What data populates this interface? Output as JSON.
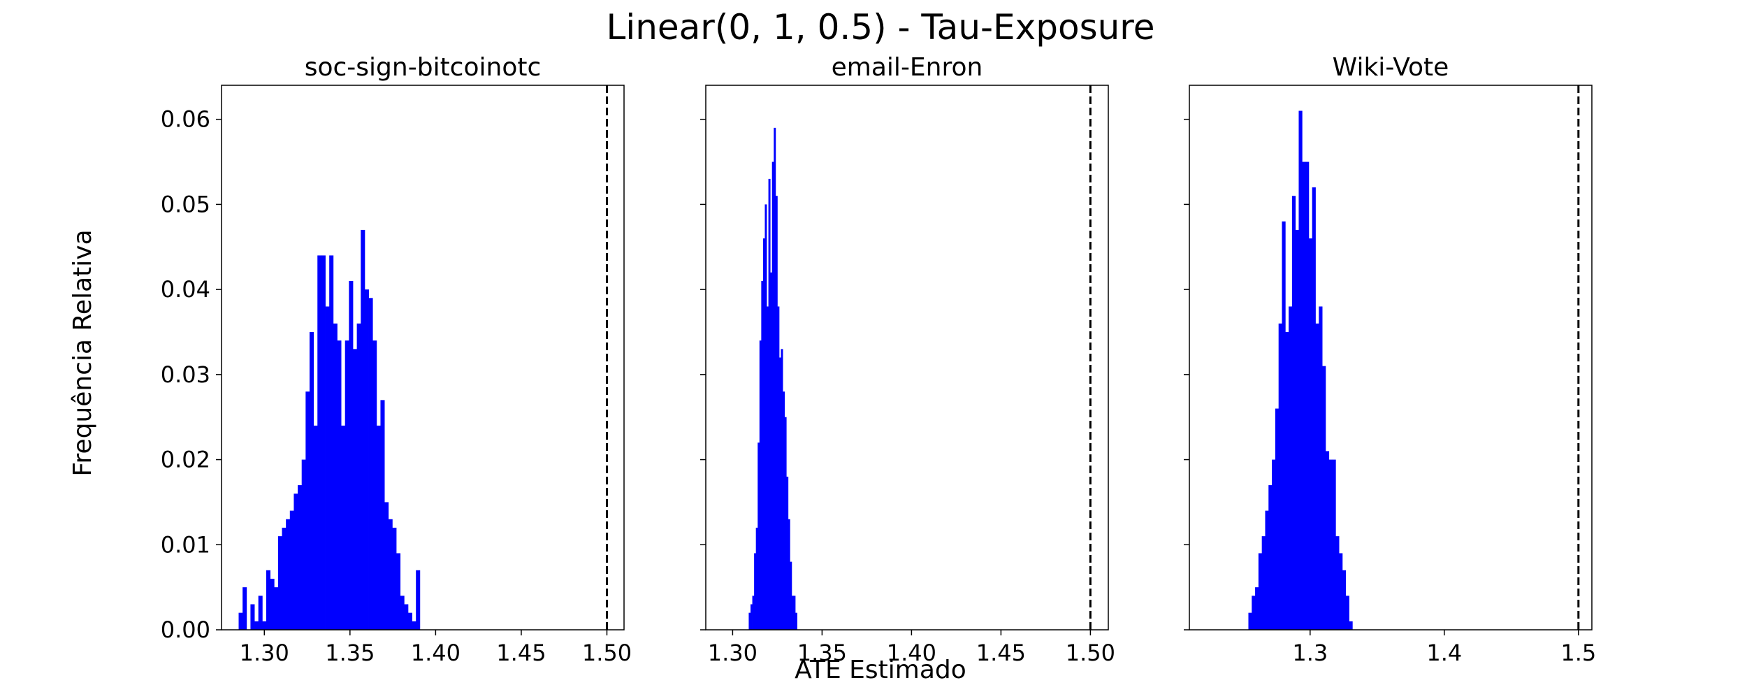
{
  "suptitle": "Linear(0, 1, 0.5) - Tau-Exposure",
  "shared_xlabel": "ATE Estimado",
  "shared_ylabel": "Frequência Relativa",
  "colors": {
    "bar": "#0000ff",
    "reference_line": "#000000"
  },
  "chart_data": [
    {
      "type": "bar",
      "title": "soc-sign-bitcoinotc",
      "xlim": [
        1.275,
        1.51
      ],
      "ylim": [
        0,
        0.064
      ],
      "x_ticks": [
        1.3,
        1.35,
        1.4,
        1.45,
        1.5
      ],
      "x_tick_labels": [
        "1.30",
        "1.35",
        "1.40",
        "1.45",
        "1.50"
      ],
      "y_ticks": [
        0,
        0.01,
        0.02,
        0.03,
        0.04,
        0.05,
        0.06
      ],
      "y_tick_labels": [
        "0.00",
        "0.01",
        "0.02",
        "0.03",
        "0.04",
        "0.05",
        "0.06"
      ],
      "reference_line_x": 1.5,
      "bin_start": 1.285,
      "bin_width": 0.0023,
      "values": [
        0.002,
        0.005,
        0.0,
        0.003,
        0.001,
        0.004,
        0.001,
        0.007,
        0.006,
        0.005,
        0.011,
        0.012,
        0.013,
        0.014,
        0.016,
        0.017,
        0.02,
        0.028,
        0.035,
        0.024,
        0.044,
        0.044,
        0.038,
        0.044,
        0.036,
        0.034,
        0.024,
        0.034,
        0.041,
        0.033,
        0.036,
        0.047,
        0.04,
        0.039,
        0.034,
        0.024,
        0.027,
        0.015,
        0.013,
        0.012,
        0.009,
        0.004,
        0.003,
        0.002,
        0.001,
        0.007
      ]
    },
    {
      "type": "bar",
      "title": "email-Enron",
      "xlim": [
        1.285,
        1.51
      ],
      "ylim": [
        0,
        0.064
      ],
      "x_ticks": [
        1.3,
        1.35,
        1.4,
        1.45,
        1.5
      ],
      "x_tick_labels": [
        "1.30",
        "1.35",
        "1.40",
        "1.45",
        "1.50"
      ],
      "y_ticks": [
        0,
        0.01,
        0.02,
        0.03,
        0.04,
        0.05,
        0.06
      ],
      "y_tick_labels": [],
      "reference_line_x": 1.5,
      "bin_start": 1.309,
      "bin_width": 0.001,
      "values": [
        0.002,
        0.003,
        0.004,
        0.009,
        0.012,
        0.022,
        0.034,
        0.041,
        0.046,
        0.05,
        0.038,
        0.053,
        0.042,
        0.055,
        0.059,
        0.051,
        0.038,
        0.032,
        0.033,
        0.028,
        0.025,
        0.018,
        0.013,
        0.008,
        0.004,
        0.004,
        0.002
      ]
    },
    {
      "type": "bar",
      "title": "Wiki-Vote",
      "xlim": [
        1.21,
        1.51
      ],
      "ylim": [
        0,
        0.064
      ],
      "x_ticks": [
        1.3,
        1.4,
        1.5
      ],
      "x_tick_labels": [
        "1.3",
        "1.4",
        "1.5"
      ],
      "y_ticks": [
        0,
        0.01,
        0.02,
        0.03,
        0.04,
        0.05,
        0.06
      ],
      "y_tick_labels": [],
      "reference_line_x": 1.5,
      "bin_start": 1.254,
      "bin_width": 0.0025,
      "values": [
        0.002,
        0.004,
        0.005,
        0.009,
        0.011,
        0.014,
        0.017,
        0.02,
        0.026,
        0.036,
        0.048,
        0.035,
        0.038,
        0.051,
        0.047,
        0.061,
        0.055,
        0.055,
        0.046,
        0.052,
        0.036,
        0.038,
        0.031,
        0.021,
        0.02,
        0.02,
        0.011,
        0.009,
        0.007,
        0.004,
        0.001
      ]
    }
  ]
}
